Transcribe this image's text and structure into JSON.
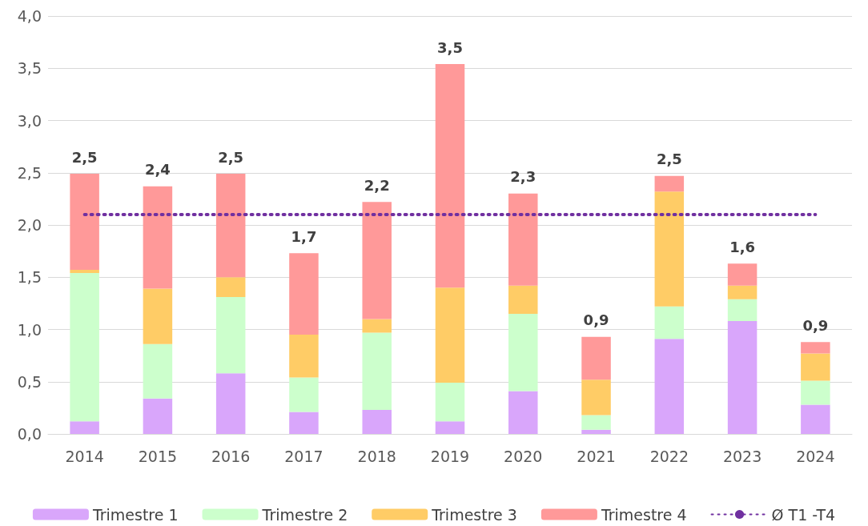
{
  "chart_data": {
    "type": "bar",
    "stacked": true,
    "categories": [
      "2014",
      "2015",
      "2016",
      "2017",
      "2018",
      "2019",
      "2020",
      "2021",
      "2022",
      "2023",
      "2024"
    ],
    "series": [
      {
        "name": "Trimestre 1",
        "color": "#d9a6fb",
        "values": [
          0.12,
          0.34,
          0.58,
          0.21,
          0.23,
          0.12,
          0.41,
          0.04,
          0.91,
          1.08,
          0.28
        ]
      },
      {
        "name": "Trimestre 2",
        "color": "#ccffcc",
        "values": [
          1.42,
          0.52,
          0.73,
          0.33,
          0.74,
          0.37,
          0.74,
          0.14,
          0.31,
          0.21,
          0.23
        ]
      },
      {
        "name": "Trimestre 3",
        "color": "#ffcc66",
        "values": [
          0.03,
          0.53,
          0.19,
          0.41,
          0.13,
          0.91,
          0.27,
          0.34,
          1.1,
          0.13,
          0.26
        ]
      },
      {
        "name": "Trimestre 4",
        "color": "#ff9999",
        "values": [
          0.92,
          0.98,
          0.99,
          0.78,
          1.12,
          2.14,
          0.88,
          0.41,
          0.15,
          0.21,
          0.11
        ]
      },
      {
        "name": "Ø T1 -T4",
        "type": "line",
        "color": "#7030a0",
        "line_style": "dotted",
        "marker": "none",
        "values": [
          2.1,
          2.1,
          2.1,
          2.1,
          2.1,
          2.1,
          2.1,
          2.1,
          2.1,
          2.1,
          2.1
        ]
      }
    ],
    "totals": [
      "2,5",
      "2,4",
      "2,5",
      "1,7",
      "2,2",
      "3,5",
      "2,3",
      "0,9",
      "2,5",
      "1,6",
      "0,9"
    ],
    "ylim": [
      0,
      4
    ],
    "yticks": [
      {
        "value": 0,
        "label": "0,0"
      },
      {
        "value": 0.5,
        "label": "0,5"
      },
      {
        "value": 1,
        "label": "1,0"
      },
      {
        "value": 1.5,
        "label": "1,5"
      },
      {
        "value": 2,
        "label": "2,0"
      },
      {
        "value": 2.5,
        "label": "2,5"
      },
      {
        "value": 3,
        "label": "3,0"
      },
      {
        "value": 3.5,
        "label": "3,5"
      },
      {
        "value": 4,
        "label": "4,0"
      }
    ],
    "grid": "y",
    "legend": "bottom"
  }
}
